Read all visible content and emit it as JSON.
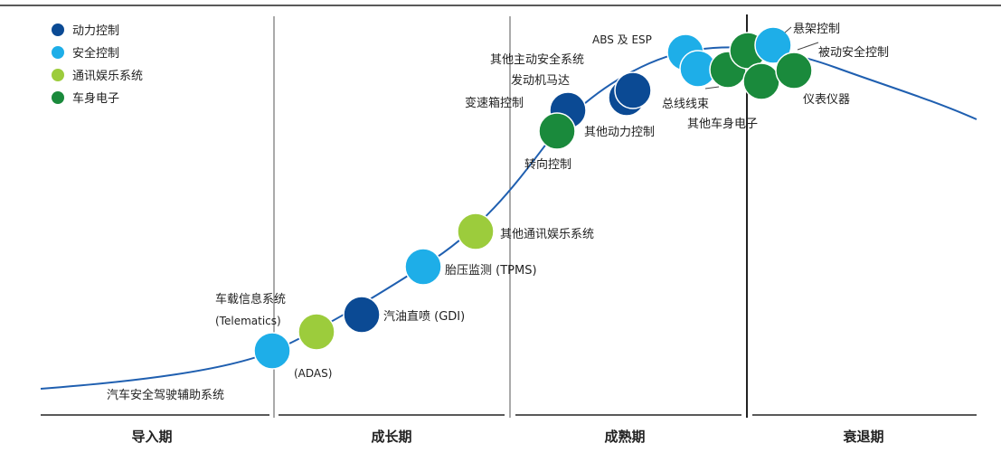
{
  "colors": {
    "powertrain": "#0b4a94",
    "safety": "#1eaee8",
    "infotainment": "#9ccc3c",
    "body": "#1a8a3c",
    "curve": "#1f5fb0"
  },
  "legend": [
    {
      "label": "动力控制",
      "color": "#0b4a94"
    },
    {
      "label": "安全控制",
      "color": "#1eaee8"
    },
    {
      "label": "通讯娱乐系统",
      "color": "#9ccc3c"
    },
    {
      "label": "车身电子",
      "color": "#1a8a3c"
    }
  ],
  "stages": [
    "导入期",
    "成长期",
    "成熟期",
    "衰退期"
  ],
  "items": [
    {
      "label": "汽车安全驾驶辅助系统",
      "category": "安全控制"
    },
    {
      "label": "(ADAS)",
      "category": "安全控制"
    },
    {
      "label": "车载信息系统",
      "category": "通讯娱乐系统"
    },
    {
      "label": "(Telematics)",
      "category": "通讯娱乐系统"
    },
    {
      "label": "汽油直喷 (GDI)",
      "category": "动力控制"
    },
    {
      "label": "胎压监测 (TPMS)",
      "category": "安全控制"
    },
    {
      "label": "其他通讯娱乐系统",
      "category": "通讯娱乐系统"
    },
    {
      "label": "转向控制",
      "category": "车身电子"
    },
    {
      "label": "变速箱控制",
      "category": "动力控制"
    },
    {
      "label": "其他动力控制",
      "category": "动力控制"
    },
    {
      "label": "发动机马达",
      "category": "动力控制"
    },
    {
      "label": "其他主动安全系统",
      "category": "安全控制"
    },
    {
      "label": "ABS 及 ESP",
      "category": "安全控制"
    },
    {
      "label": "总线线束",
      "category": "车身电子"
    },
    {
      "label": "其他车身电子",
      "category": "车身电子"
    },
    {
      "label": "悬架控制",
      "category": "车身电子"
    },
    {
      "label": "被动安全控制",
      "category": "安全控制"
    },
    {
      "label": "仪表仪器",
      "category": "车身电子"
    }
  ]
}
